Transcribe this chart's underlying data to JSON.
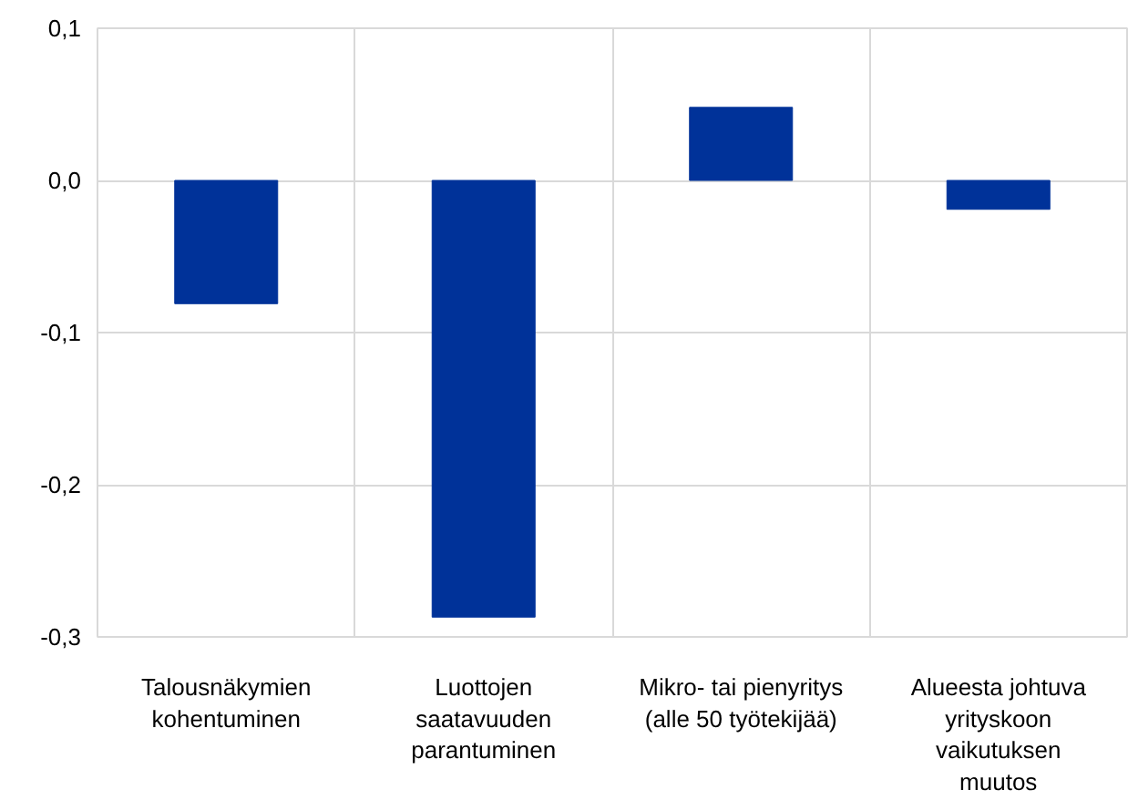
{
  "chart_data": {
    "type": "bar",
    "categories": [
      "Talousnäkymien\nkohentuminen",
      "Luottojen\nsaatavuuden\nparantuminen",
      "Mikro- tai pienyritys\n(alle 50 työtekijää)",
      "Alueesta johtuva\nyrityskoon\nvaikutuksen\nmuutos"
    ],
    "values": [
      -0.081,
      -0.287,
      0.048,
      -0.019
    ],
    "color": "#003299",
    "ylim": [
      -0.3,
      0.1
    ],
    "yticks": [
      {
        "value": 0.1,
        "label": "0,1"
      },
      {
        "value": 0.0,
        "label": "0,0"
      },
      {
        "value": -0.1,
        "label": "-0,1"
      },
      {
        "value": -0.2,
        "label": "-0,2"
      },
      {
        "value": -0.3,
        "label": "-0,3"
      }
    ],
    "grid": true
  }
}
